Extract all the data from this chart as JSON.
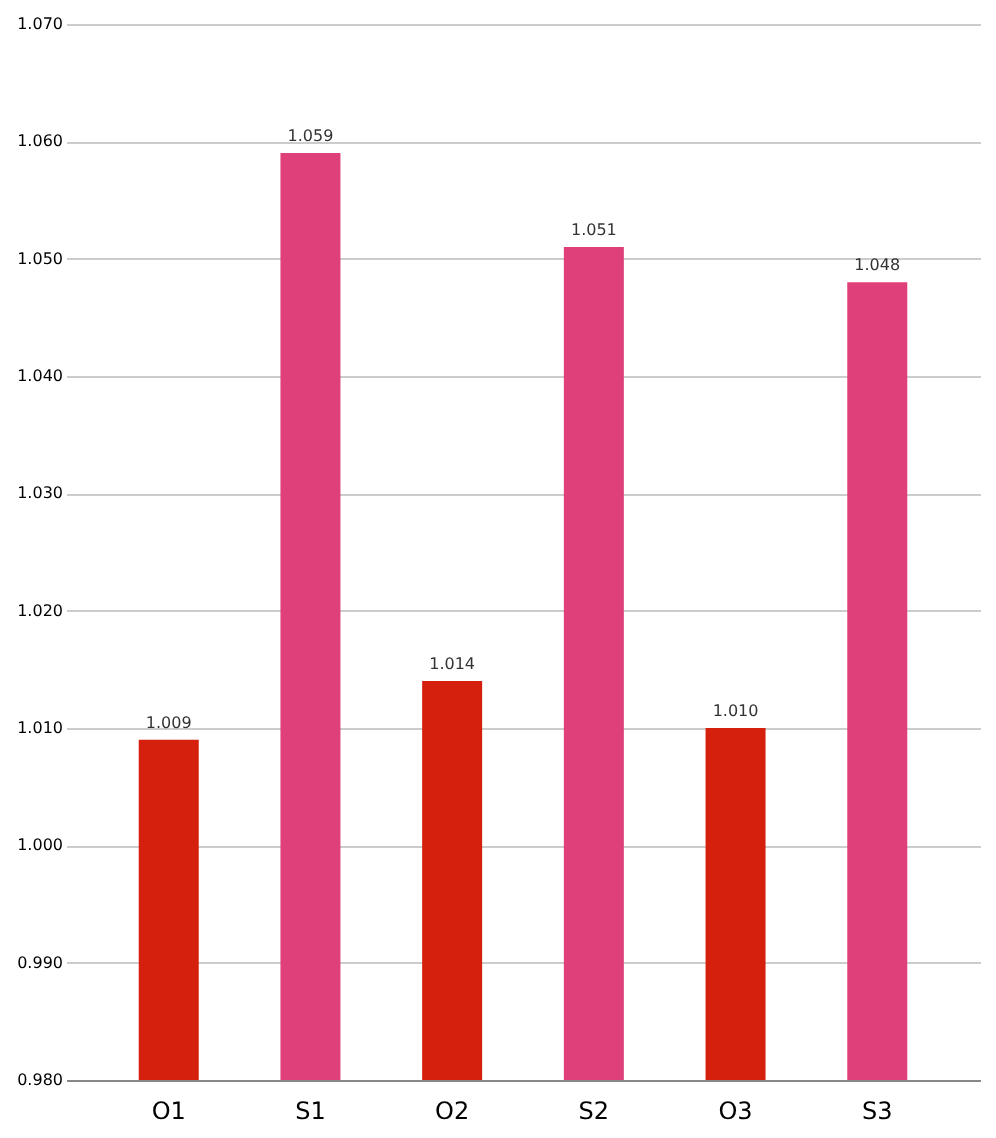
{
  "chart_data": {
    "type": "bar",
    "categories": [
      "O1",
      "S1",
      "O2",
      "S2",
      "O3",
      "S3"
    ],
    "values": [
      1.009,
      1.059,
      1.014,
      1.051,
      1.01,
      1.048
    ],
    "value_labels": [
      "1.009",
      "1.059",
      "1.014",
      "1.051",
      "1.010",
      "1.048"
    ],
    "colors": [
      "#d4200c",
      "#e0407a",
      "#d4200c",
      "#e0407a",
      "#d4200c",
      "#e0407a"
    ],
    "ylim": [
      0.98,
      1.07
    ],
    "yticks": [
      {
        "value": 0.98,
        "label": "0.980"
      },
      {
        "value": 0.99,
        "label": "0.990"
      },
      {
        "value": 1.0,
        "label": "1.000"
      },
      {
        "value": 1.01,
        "label": "1.010"
      },
      {
        "value": 1.02,
        "label": "1.020"
      },
      {
        "value": 1.03,
        "label": "1.030"
      },
      {
        "value": 1.04,
        "label": "1.040"
      },
      {
        "value": 1.05,
        "label": "1.050"
      },
      {
        "value": 1.06,
        "label": "1.060"
      },
      {
        "value": 1.07,
        "label": "1.070"
      }
    ],
    "grid": "y"
  }
}
